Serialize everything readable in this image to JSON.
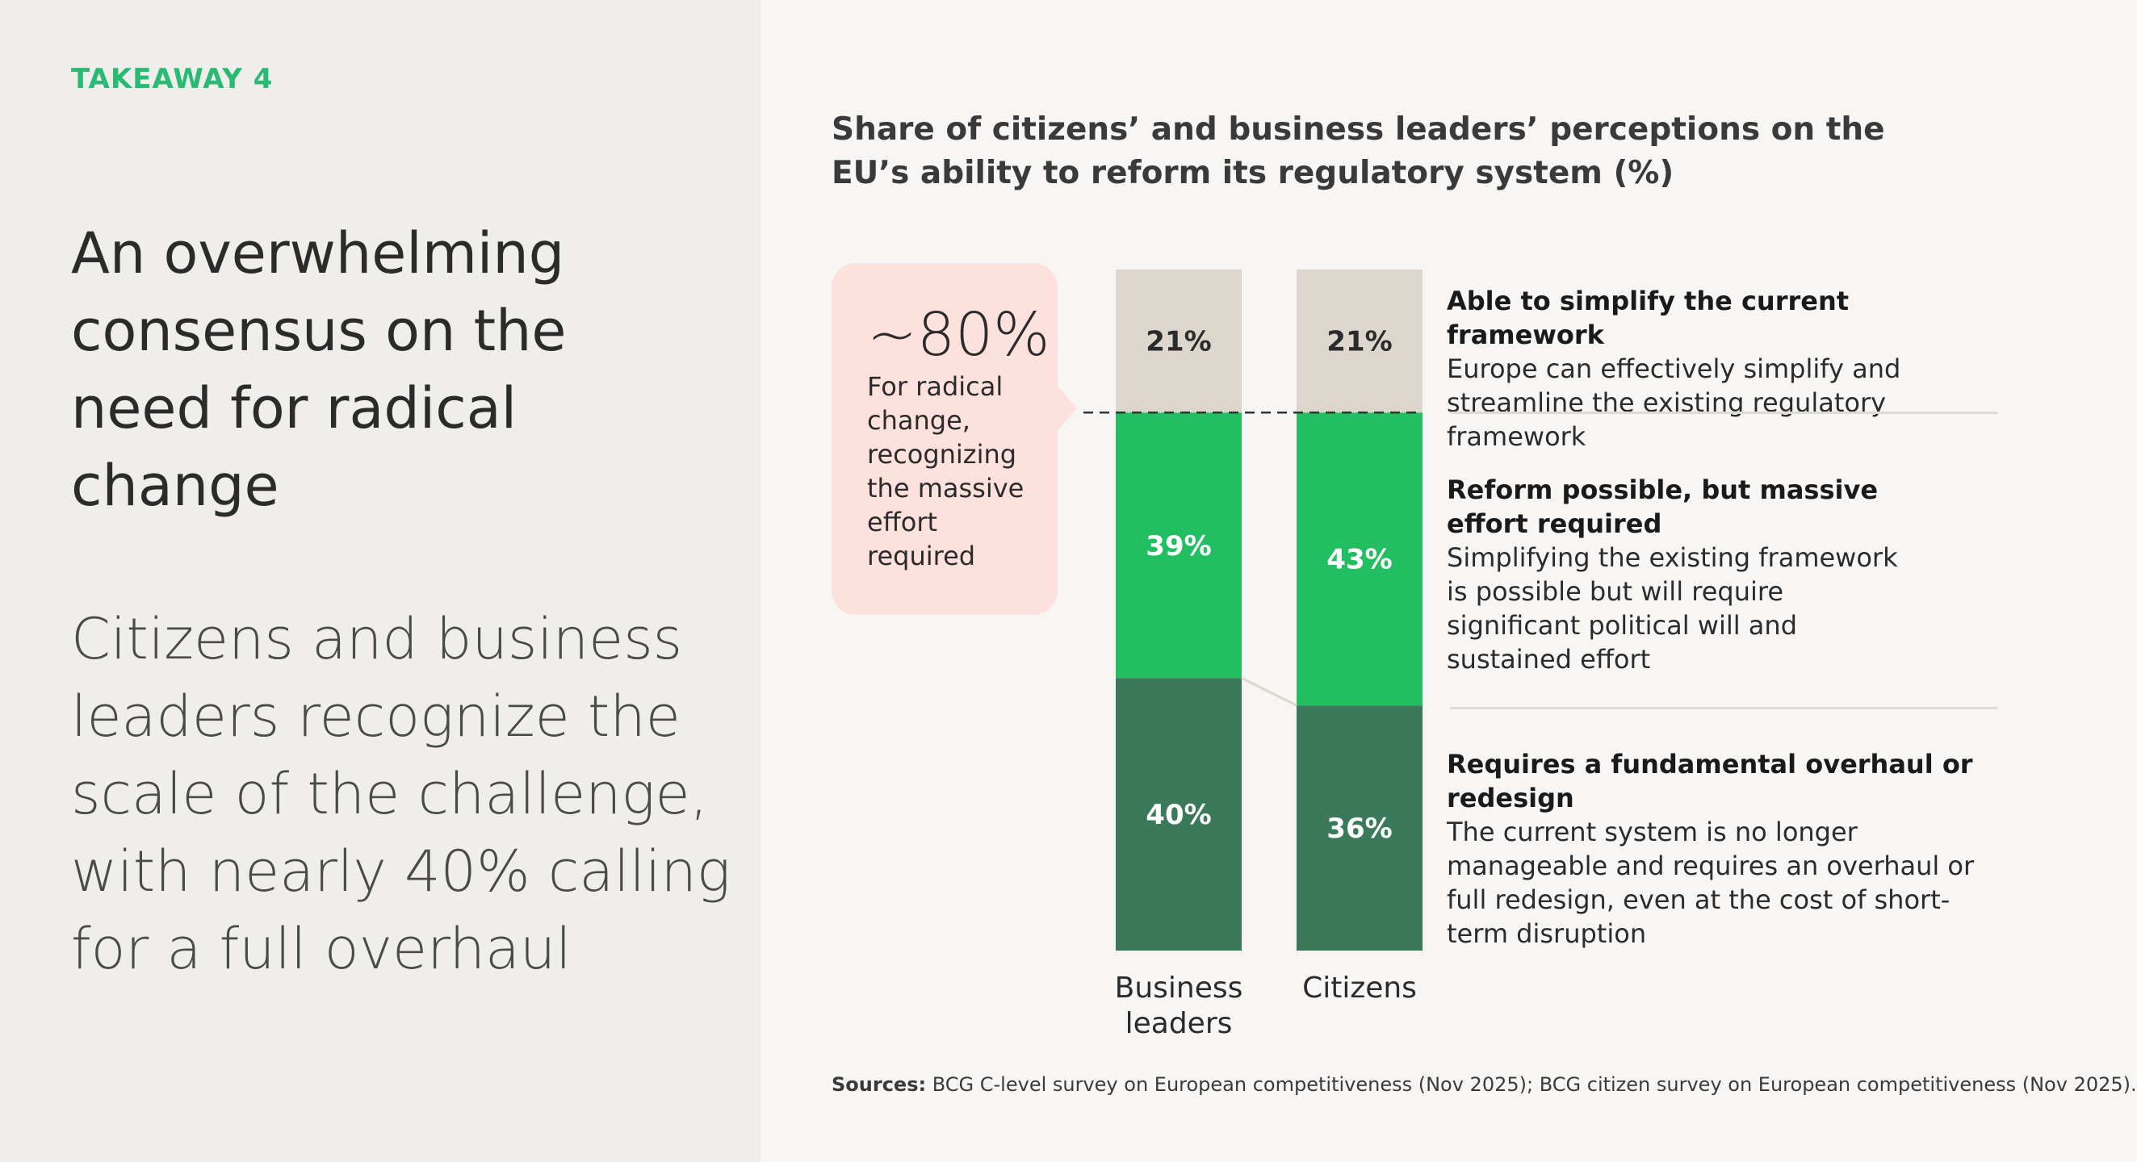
{
  "left_panel": {
    "kicker": "TAKEAWAY 4",
    "headline": "An overwhelming consensus on the need for radical change",
    "subhead": "Citizens and business leaders recognize the scale of the challenge, with nearly 40% calling for a full overhaul"
  },
  "callout": {
    "big": "~80%",
    "text": "For radical change, recognizing the massive effort required"
  },
  "legend": [
    {
      "heading": "Able to simplify the current framework",
      "body": "Europe can effectively simplify and streamline the existing regulatory framework"
    },
    {
      "heading": "Reform possible, but massive effort required",
      "body": "Simplifying the existing framework is possible but will require significant political will and sustained effort"
    },
    {
      "heading": "Requires a fundamental overhaul or redesign",
      "body": "The current system is no longer manageable and requires an overhaul or full redesign, even at the cost of short-term disruption"
    }
  ],
  "sources": {
    "label": "Sources:",
    "text": "BCG C-level survey on European competitiveness (Nov 2025); BCG citizen survey on European competitiveness (Nov 2025)."
  },
  "colors": {
    "simplify": "#dcd6cc",
    "reform": "#21bf61",
    "overhaul": "#3a7a5a",
    "accent": "#29ba74",
    "callout_bg": "#fde1dc"
  },
  "chart_data": {
    "type": "bar",
    "stacked": true,
    "title": "Share of citizens’ and business leaders’ perceptions on the EU’s ability to reform its regulatory system (%)",
    "categories": [
      "Business leaders",
      "Citizens"
    ],
    "series": [
      {
        "name": "Requires a fundamental overhaul or redesign",
        "values": [
          40,
          36
        ],
        "labels": [
          "40%",
          "36%"
        ],
        "color": "#3a7a5a",
        "label_color": "#ffffff"
      },
      {
        "name": "Reform possible, but massive effort required",
        "values": [
          39,
          43
        ],
        "labels": [
          "39%",
          "43%"
        ],
        "color": "#21bf61",
        "label_color": "#ffffff"
      },
      {
        "name": "Able to simplify the current framework",
        "values": [
          21,
          21
        ],
        "labels": [
          "21%",
          "21%"
        ],
        "color": "#dcd6cc",
        "label_color": "#2b2b2b"
      }
    ],
    "ylim": [
      0,
      100
    ],
    "xlabel": "",
    "ylabel": "",
    "grid": false,
    "legend": "right"
  }
}
